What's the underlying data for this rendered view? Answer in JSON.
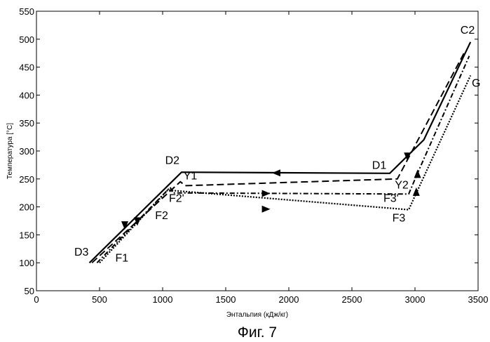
{
  "chart_data": {
    "type": "line",
    "xlabel": "Энтальпия (кДж/кг)",
    "ylabel": "Температура [°C]",
    "caption": "Фиг. 7",
    "xlim": [
      0,
      3500
    ],
    "ylim": [
      50,
      550
    ],
    "xticks": [
      0,
      500,
      1000,
      1500,
      2000,
      2500,
      3000,
      3500
    ],
    "yticks": [
      50,
      100,
      150,
      200,
      250,
      300,
      350,
      400,
      450,
      500,
      550
    ],
    "grid": false,
    "series": [
      {
        "style": "solid",
        "x": [
          420,
          1150,
          2800,
          3070,
          3440
        ],
        "y": [
          100,
          262,
          260,
          320,
          495
        ],
        "arrows": [
          [
            1900,
            260.8,
            "left"
          ],
          [
            2940,
            291,
            "down"
          ],
          [
            700,
            168,
            "down"
          ]
        ]
      },
      {
        "style": "dashed",
        "x": [
          440,
          1140,
          1180,
          2860,
          3400
        ],
        "y": [
          100,
          245,
          238,
          250,
          480
        ],
        "arrows": []
      },
      {
        "style": "dashdot",
        "x": [
          480,
          1060,
          1080,
          2950,
          3020,
          3430
        ],
        "y": [
          100,
          235,
          225,
          223,
          260,
          470
        ],
        "arrows": [
          [
            1820,
            224,
            "right"
          ],
          [
            800,
            175,
            "down"
          ],
          [
            3020,
            258,
            "up"
          ]
        ]
      },
      {
        "style": "dotted",
        "x": [
          500,
          1040,
          2950,
          3440
        ],
        "y": [
          100,
          230,
          195,
          435
        ],
        "arrows": [
          [
            1820,
            196,
            "right"
          ],
          [
            3010,
            226,
            "up"
          ]
        ]
      }
    ],
    "annotations": [
      {
        "text": "C2",
        "x": 3360,
        "y": 510
      },
      {
        "text": "G",
        "x": 3450,
        "y": 415
      },
      {
        "text": "D1",
        "x": 2660,
        "y": 268
      },
      {
        "text": "D2",
        "x": 1020,
        "y": 277
      },
      {
        "text": "Y1",
        "x": 1165,
        "y": 249
      },
      {
        "text": "Y2",
        "x": 2840,
        "y": 233
      },
      {
        "text": "F2'",
        "x": 1050,
        "y": 209
      },
      {
        "text": "F3'",
        "x": 2750,
        "y": 209
      },
      {
        "text": "F2",
        "x": 940,
        "y": 178
      },
      {
        "text": "F3",
        "x": 2820,
        "y": 174
      },
      {
        "text": "D3",
        "x": 300,
        "y": 113
      },
      {
        "text": "F1",
        "x": 625,
        "y": 102
      }
    ]
  }
}
